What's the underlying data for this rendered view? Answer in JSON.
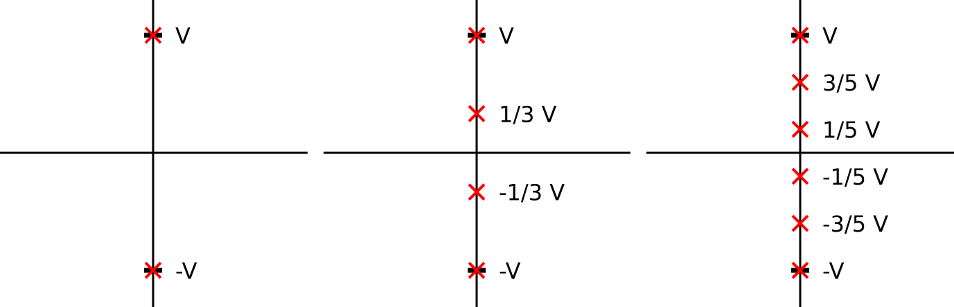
{
  "colors": {
    "axis": "#000000",
    "marker": "#ff0000",
    "label": "#000000"
  },
  "panels": [
    {
      "points": [
        {
          "value": 1,
          "label": "V",
          "end_tick": true
        },
        {
          "value": -1,
          "label": "-V",
          "end_tick": true
        }
      ]
    },
    {
      "points": [
        {
          "value": 1,
          "label": "V",
          "end_tick": true
        },
        {
          "value": 0.3333,
          "label": "1/3 V",
          "end_tick": false
        },
        {
          "value": -0.3333,
          "label": "-1/3 V",
          "end_tick": false
        },
        {
          "value": -1,
          "label": "-V",
          "end_tick": true
        }
      ]
    },
    {
      "points": [
        {
          "value": 1,
          "label": "V",
          "end_tick": true
        },
        {
          "value": 0.6,
          "label": "3/5 V",
          "end_tick": false
        },
        {
          "value": 0.2,
          "label": "1/5 V",
          "end_tick": false
        },
        {
          "value": -0.2,
          "label": "-1/5 V",
          "end_tick": false
        },
        {
          "value": -0.6,
          "label": "-3/5 V",
          "end_tick": false
        },
        {
          "value": -1,
          "label": "-V",
          "end_tick": true
        }
      ]
    }
  ]
}
